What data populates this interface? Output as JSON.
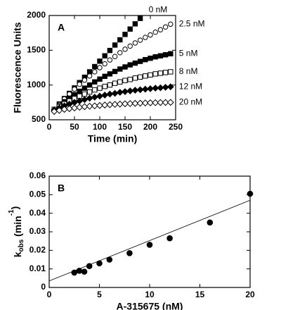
{
  "chart_data": [
    {
      "type": "scatter",
      "panel": "A",
      "x_label": "Time (min)",
      "y_label": "Fluorescence Units",
      "xlim": [
        0,
        250
      ],
      "xticks": [
        0,
        50,
        100,
        150,
        200,
        250
      ],
      "ylim": [
        500,
        2000
      ],
      "yticks": [
        500,
        1000,
        1500,
        2000
      ],
      "x": [
        10,
        20,
        30,
        40,
        50,
        60,
        70,
        80,
        90,
        100,
        110,
        120,
        130,
        140,
        150,
        160,
        170,
        180,
        190,
        200,
        210,
        220,
        230,
        240
      ],
      "series": [
        {
          "name": "0 nM",
          "color": "#000000",
          "marker": "square-filled",
          "values": [
            650,
            727,
            805,
            880,
            958,
            1035,
            1112,
            1190,
            1265,
            1343,
            1420,
            1497,
            1575,
            1650,
            1728,
            1805,
            1880,
            1958,
            null,
            null,
            null,
            null,
            null,
            null
          ]
        },
        {
          "name": "2.5 nM",
          "color": "#000000",
          "marker": "circle-open",
          "values": [
            650,
            720,
            800,
            870,
            940,
            1010,
            1070,
            1130,
            1190,
            1250,
            1305,
            1360,
            1410,
            1465,
            1515,
            1560,
            1605,
            1645,
            1685,
            1720,
            1760,
            1795,
            1835,
            1875
          ]
        },
        {
          "name": "5 nM",
          "color": "#000000",
          "marker": "square-filled",
          "values": [
            650,
            700,
            760,
            810,
            860,
            910,
            955,
            1000,
            1045,
            1085,
            1125,
            1160,
            1195,
            1230,
            1260,
            1290,
            1315,
            1340,
            1365,
            1385,
            1405,
            1420,
            1435,
            1450
          ]
        },
        {
          "name": "8 nM",
          "color": "#000000",
          "marker": "square-open",
          "values": [
            650,
            690,
            730,
            770,
            805,
            840,
            870,
            900,
            930,
            955,
            980,
            1000,
            1025,
            1045,
            1065,
            1080,
            1100,
            1115,
            1130,
            1145,
            1160,
            1170,
            1180,
            1190
          ]
        },
        {
          "name": "12 nM",
          "color": "#000000",
          "marker": "diamond-filled",
          "values": [
            640,
            670,
            700,
            725,
            750,
            770,
            790,
            810,
            825,
            840,
            855,
            870,
            880,
            895,
            905,
            915,
            925,
            932,
            940,
            947,
            955,
            960,
            967,
            975
          ]
        },
        {
          "name": "20 nM",
          "color": "#000000",
          "marker": "diamond-open",
          "values": [
            620,
            635,
            650,
            660,
            670,
            680,
            688,
            695,
            700,
            706,
            712,
            717,
            722,
            726,
            730,
            733,
            736,
            739,
            742,
            744,
            746,
            748,
            749,
            750
          ]
        }
      ]
    },
    {
      "type": "scatter",
      "panel": "B",
      "x_label": "A-315675  (nM)",
      "y_label": [
        "k",
        "obs",
        " (min",
        "-1",
        ")"
      ],
      "xlim": [
        0,
        20
      ],
      "xticks": [
        0,
        5,
        10,
        15,
        20
      ],
      "ylim": [
        0,
        0.06
      ],
      "yticks": [
        0,
        0.01,
        0.02,
        0.03,
        0.04,
        0.05,
        0.06
      ],
      "x": [
        2.5,
        3,
        3.5,
        4,
        5,
        6,
        8,
        10,
        12,
        16,
        20
      ],
      "series": [
        {
          "color": "#000000",
          "marker": "circle-filled",
          "values": [
            0.008,
            0.009,
            0.0085,
            0.0115,
            0.013,
            0.015,
            0.0185,
            0.023,
            0.0265,
            0.035,
            0.0505
          ]
        }
      ],
      "fit": {
        "x": [
          0,
          20
        ],
        "y": [
          0.0035,
          0.047
        ]
      }
    }
  ]
}
